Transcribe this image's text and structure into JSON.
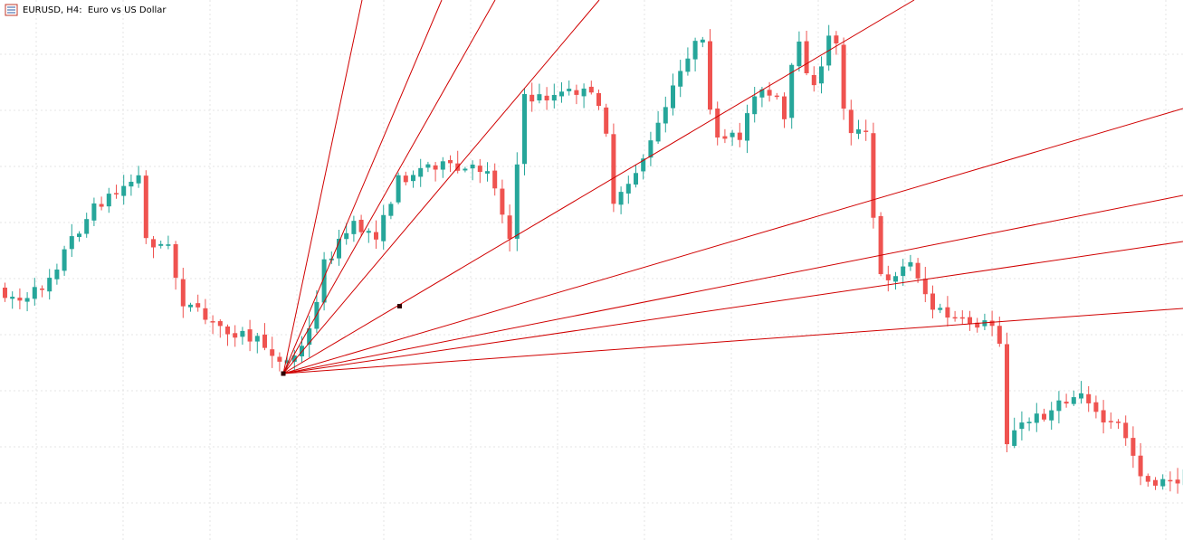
{
  "header": {
    "title": "EURUSD, H4:  Euro vs US Dollar"
  }
}
